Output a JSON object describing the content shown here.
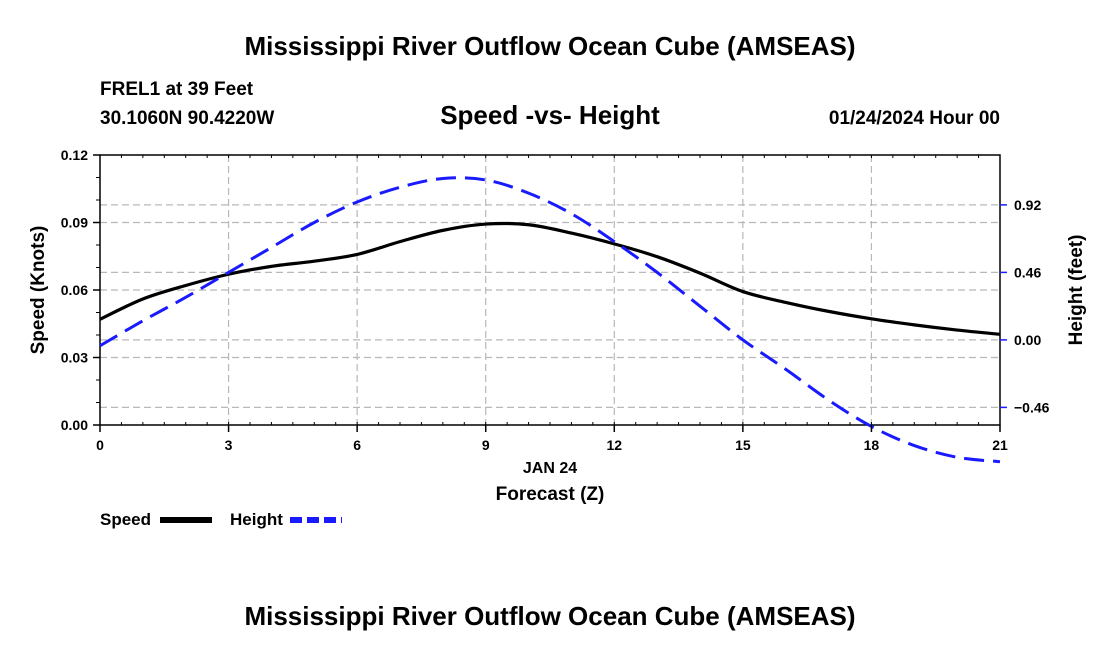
{
  "page": {
    "title_top": "Mississippi River Outflow Ocean Cube (AMSEAS)",
    "title_bottom": "Mississippi River Outflow Ocean Cube (AMSEAS)"
  },
  "station": {
    "name": "FREL1 at 39 Feet",
    "coords": "30.1060N  90.4220W",
    "datetime": "01/24/2024 Hour 00"
  },
  "chart_data": {
    "type": "line",
    "title": "Speed -vs- Height",
    "xlabel": "Forecast (Z)",
    "date_label": "JAN 24",
    "ylabel": "Speed (Knots)",
    "y2label": "Height (feet)",
    "x": [
      0,
      1,
      2,
      3,
      4,
      5,
      6,
      7,
      8,
      9,
      10,
      11,
      12,
      13,
      14,
      15,
      16,
      17,
      18,
      19,
      20,
      21
    ],
    "xlim": [
      0,
      21
    ],
    "ylim": [
      0,
      0.12
    ],
    "y2lim": [
      -0.58,
      1.26
    ],
    "xticks": [
      0,
      3,
      6,
      9,
      12,
      15,
      18,
      21
    ],
    "yticks": [
      0.0,
      0.03,
      0.06,
      0.09,
      0.12
    ],
    "ytick_labels": [
      "0.00",
      "0.03",
      "0.06",
      "0.09",
      "0.12"
    ],
    "y2ticks": [
      -0.46,
      0.0,
      0.46,
      0.92
    ],
    "y2tick_labels": [
      "−0.46",
      "0.00",
      "0.46",
      "0.92"
    ],
    "series": [
      {
        "name": "Speed",
        "axis": "left",
        "color": "#000000",
        "style": "solid",
        "values": [
          0.047,
          0.056,
          0.062,
          0.067,
          0.0705,
          0.0728,
          0.0758,
          0.0815,
          0.0865,
          0.0893,
          0.089,
          0.0853,
          0.0805,
          0.0748,
          0.0675,
          0.0593,
          0.0545,
          0.0505,
          0.0472,
          0.0445,
          0.0422,
          0.0403
        ]
      },
      {
        "name": "Height",
        "axis": "right",
        "color": "#1a1aff",
        "style": "dashed",
        "values": [
          -0.04,
          0.13,
          0.29,
          0.46,
          0.63,
          0.8,
          0.94,
          1.04,
          1.1,
          1.09,
          1.0,
          0.86,
          0.67,
          0.46,
          0.23,
          0.0,
          -0.2,
          -0.41,
          -0.59,
          -0.72,
          -0.8,
          -0.83
        ]
      }
    ],
    "legend": {
      "position": "bottom-left",
      "items": [
        "Speed",
        "Height"
      ]
    },
    "grid": true
  }
}
